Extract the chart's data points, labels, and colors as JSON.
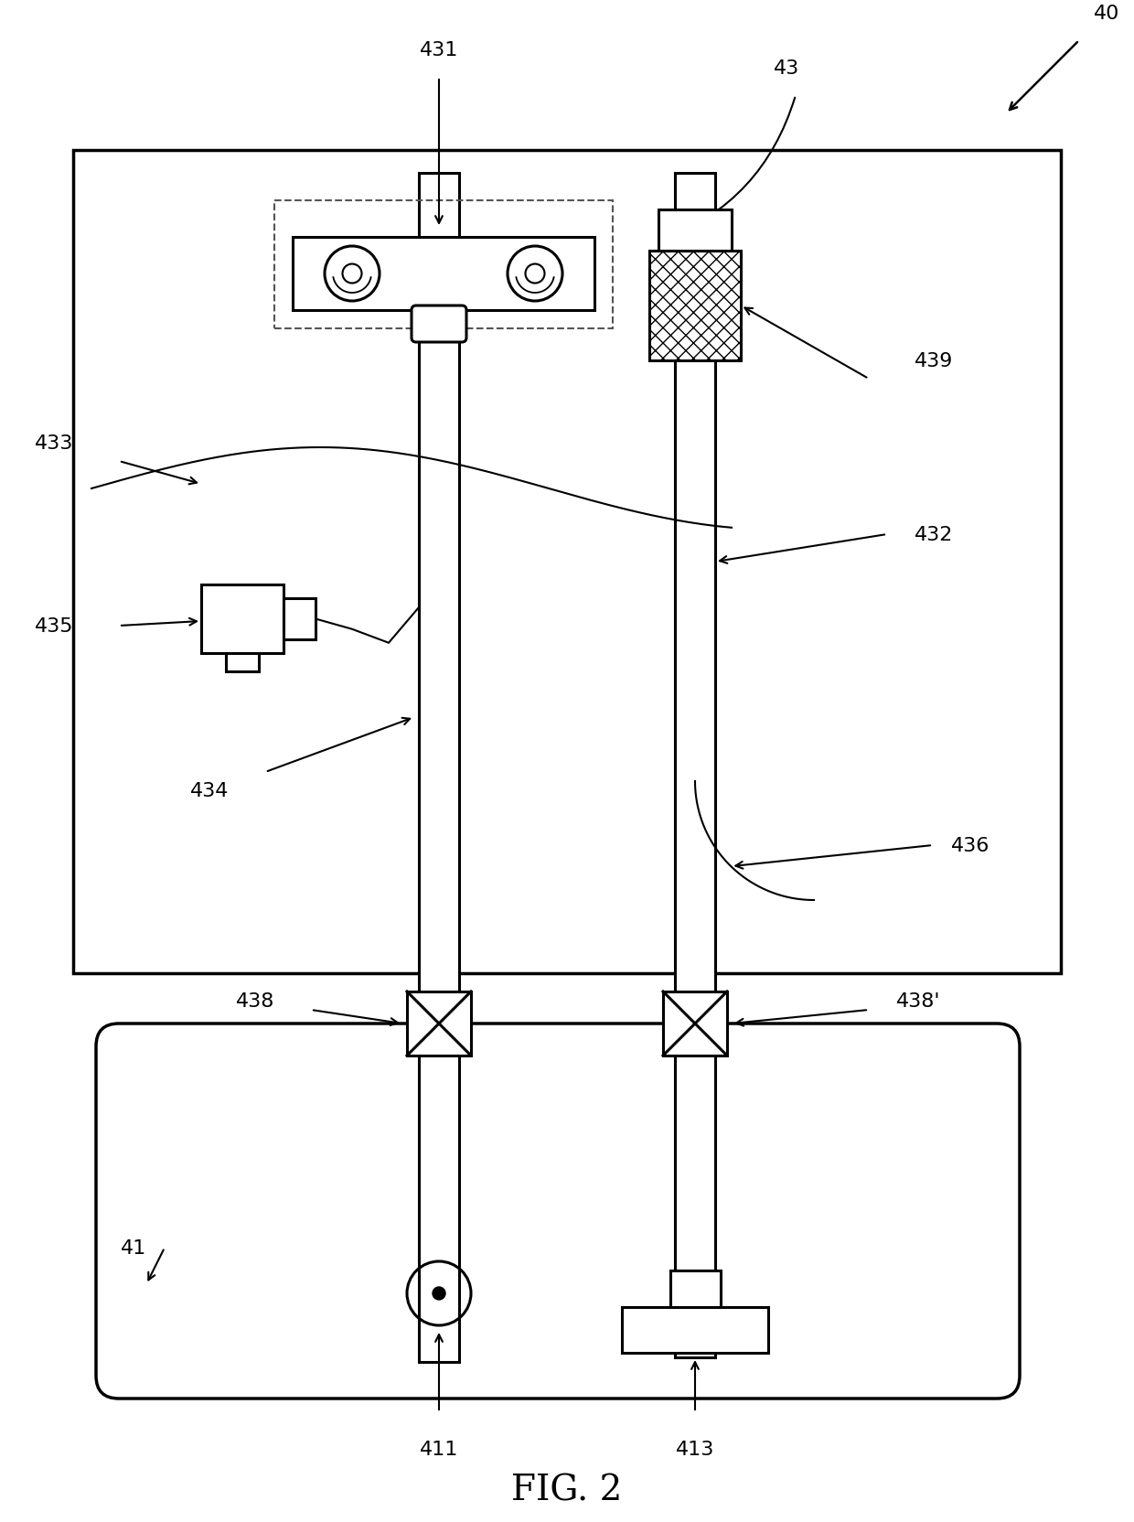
{
  "bg_color": "#ffffff",
  "line_color": "#000000",
  "fig_title": "FIG. 2",
  "lw_main": 2.2,
  "lw_thin": 1.5,
  "lw_border": 2.5
}
